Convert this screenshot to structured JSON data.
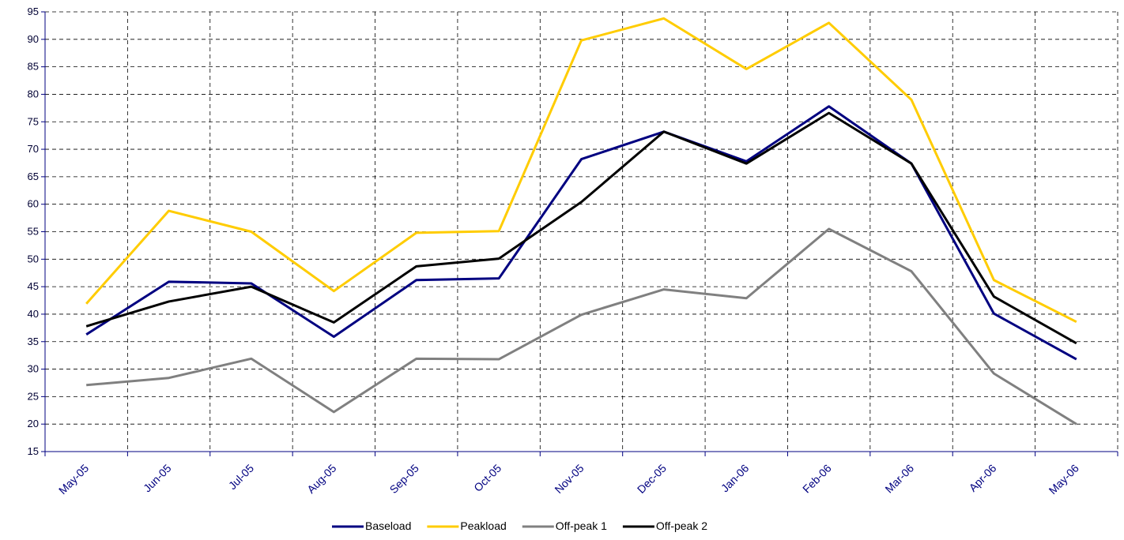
{
  "chart_data": {
    "type": "line",
    "categories": [
      "May-05",
      "Jun-05",
      "Jul-05",
      "Aug-05",
      "Sep-05",
      "Oct-05",
      "Nov-05",
      "Dec-05",
      "Jan-06",
      "Feb-06",
      "Mar-06",
      "Apr-06",
      "May-06"
    ],
    "series": [
      {
        "name": "Baseload",
        "color": "#000080",
        "values": [
          36.3,
          45.9,
          45.6,
          35.9,
          46.2,
          46.5,
          68.2,
          73.2,
          67.8,
          77.8,
          67.4,
          40.1,
          31.8
        ]
      },
      {
        "name": "Peakload",
        "color": "#ffcc00",
        "values": [
          41.9,
          58.8,
          55.0,
          44.2,
          54.8,
          55.1,
          89.8,
          93.8,
          84.6,
          93.0,
          79.0,
          46.2,
          38.6
        ]
      },
      {
        "name": "Off-peak 1",
        "color": "#808080",
        "values": [
          27.1,
          28.4,
          31.9,
          22.2,
          31.9,
          31.8,
          39.9,
          44.5,
          42.9,
          55.5,
          47.8,
          29.2,
          20.0
        ]
      },
      {
        "name": "Off-peak 2",
        "color": "#000000",
        "values": [
          37.8,
          42.3,
          45.0,
          38.5,
          48.7,
          50.1,
          60.4,
          73.2,
          67.4,
          76.6,
          67.4,
          43.2,
          34.7
        ]
      }
    ],
    "ylim": [
      15,
      95
    ],
    "yticks": [
      15,
      20,
      25,
      30,
      35,
      40,
      45,
      50,
      55,
      60,
      65,
      70,
      75,
      80,
      85,
      90,
      95
    ],
    "grid": true,
    "legend": "bottom"
  }
}
